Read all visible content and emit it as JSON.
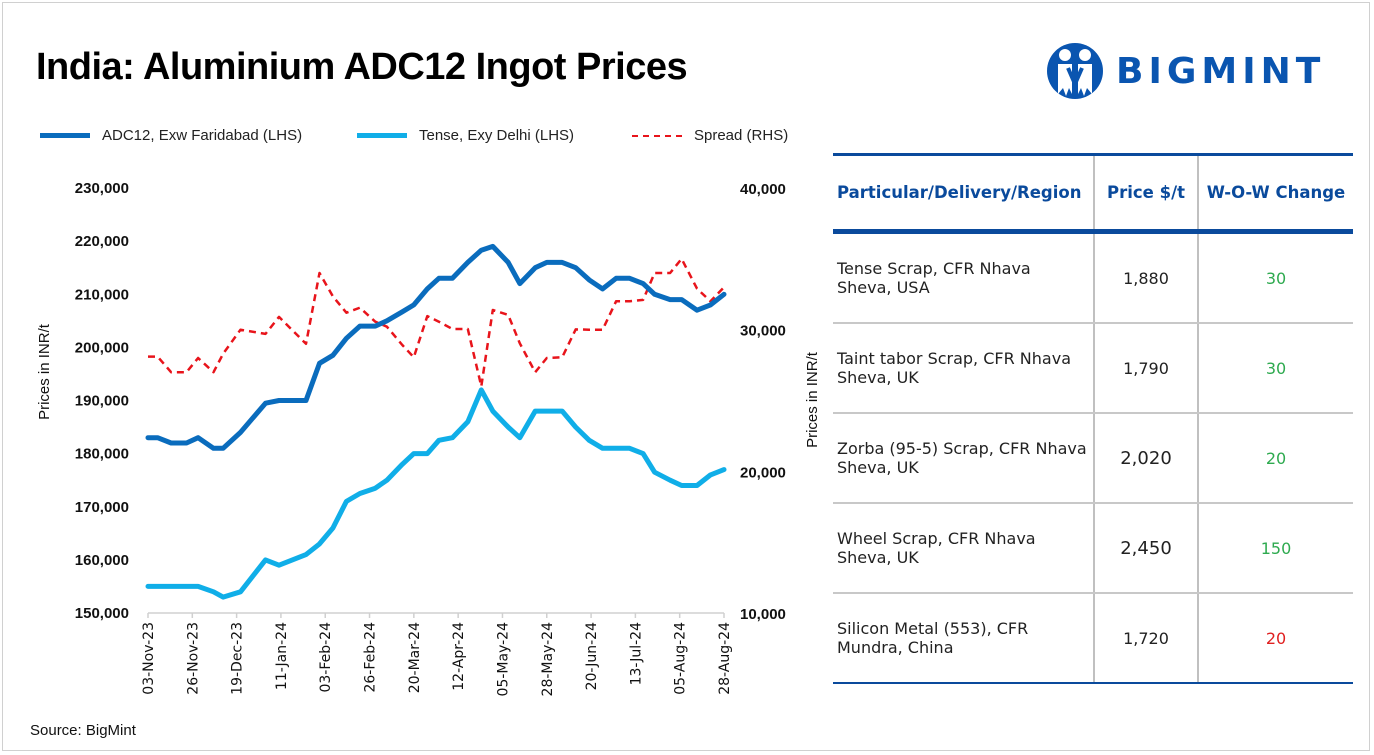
{
  "title": "India: Aluminium ADC12 Ingot Prices",
  "logo": {
    "text": "BIGMINT",
    "color": "#0a55b0"
  },
  "source": "Source: BigMint",
  "chart_data": {
    "type": "line",
    "title": "India: Aluminium ADC12 Ingot Prices",
    "ylabel": "Prices in INR/t",
    "y2label": "Prices in INR/t",
    "ylim": [
      150000,
      230000
    ],
    "y2lim": [
      10000,
      40000
    ],
    "yticks": [
      "150,000",
      "160,000",
      "170,000",
      "180,000",
      "190,000",
      "200,000",
      "210,000",
      "220,000",
      "230,000"
    ],
    "y2ticks": [
      "10,000",
      "20,000",
      "30,000",
      "40,000"
    ],
    "xticks": [
      "03-Nov-23",
      "26-Nov-23",
      "19-Dec-23",
      "11-Jan-24",
      "03-Feb-24",
      "26-Feb-24",
      "20-Mar-24",
      "12-Apr-24",
      "05-May-24",
      "28-May-24",
      "20-Jun-24",
      "13-Jul-24",
      "05-Aug-24",
      "28-Aug-24"
    ],
    "xtick_dates": [
      "2023-11-03",
      "2023-11-26",
      "2023-12-19",
      "2024-01-11",
      "2024-02-03",
      "2024-02-26",
      "2024-03-20",
      "2024-04-12",
      "2024-05-05",
      "2024-05-28",
      "2024-06-20",
      "2024-07-13",
      "2024-08-05",
      "2024-08-28"
    ],
    "legend_position": "top",
    "grid": false,
    "x": [
      "2023-11-03",
      "2023-11-08",
      "2023-11-15",
      "2023-11-23",
      "2023-11-29",
      "2023-12-07",
      "2023-12-12",
      "2023-12-21",
      "2024-01-03",
      "2024-01-10",
      "2024-01-24",
      "2024-01-31",
      "2024-02-07",
      "2024-02-14",
      "2024-02-21",
      "2024-02-29",
      "2024-03-06",
      "2024-03-14",
      "2024-03-20",
      "2024-03-27",
      "2024-04-02",
      "2024-04-09",
      "2024-04-17",
      "2024-04-24",
      "2024-04-30",
      "2024-05-08",
      "2024-05-14",
      "2024-05-22",
      "2024-05-28",
      "2024-06-05",
      "2024-06-12",
      "2024-06-19",
      "2024-06-26",
      "2024-07-03",
      "2024-07-10",
      "2024-07-17",
      "2024-07-23",
      "2024-07-31",
      "2024-08-06",
      "2024-08-14",
      "2024-08-21",
      "2024-08-28"
    ],
    "series": [
      {
        "name": "ADC12, Exw Faridabad (LHS)",
        "axis": "left",
        "color": "#0a6cbd",
        "style": "solid",
        "values": [
          183000,
          183000,
          182000,
          182000,
          183000,
          181000,
          181000,
          184000,
          189500,
          190000,
          190000,
          197000,
          198500,
          201700,
          204000,
          204000,
          205000,
          206700,
          208000,
          211000,
          213000,
          213000,
          216000,
          218300,
          219000,
          216000,
          212000,
          215000,
          216000,
          216000,
          215000,
          212700,
          211000,
          213000,
          213000,
          212000,
          210000,
          209000,
          209000,
          207000,
          208000,
          210000
        ]
      },
      {
        "name": "Tense, Exy Delhi (LHS)",
        "axis": "left",
        "color": "#10aee8",
        "style": "solid",
        "values": [
          155000,
          155000,
          155000,
          155000,
          155000,
          154000,
          153000,
          154000,
          160000,
          159000,
          161000,
          163000,
          166000,
          171000,
          172500,
          173500,
          175000,
          178000,
          180000,
          180000,
          182500,
          183000,
          186000,
          192000,
          188000,
          185000,
          183000,
          188000,
          188000,
          188000,
          185000,
          182500,
          181000,
          181000,
          181000,
          180000,
          176500,
          175000,
          174000,
          174000,
          176000,
          177000
        ]
      },
      {
        "name": "Spread (RHS)",
        "axis": "right",
        "color": "#e8141b",
        "style": "dashed",
        "values": [
          28100,
          28100,
          27000,
          27000,
          28000,
          27000,
          28300,
          30000,
          29700,
          30900,
          29000,
          34000,
          32350,
          31200,
          31550,
          30560,
          30210,
          28920,
          28050,
          30960,
          30560,
          30050,
          30050,
          26000,
          31390,
          31040,
          29040,
          27000,
          28000,
          28050,
          30020,
          30000,
          30000,
          32000,
          32000,
          32100,
          34000,
          34000,
          35000,
          32900,
          32000,
          33000
        ]
      }
    ]
  },
  "table": {
    "headers": [
      "Particular/Delivery/Region",
      "Price $/t",
      "W-O-W Change"
    ],
    "rows": [
      {
        "item": " Tense Scrap, CFR Nhava Sheva, USA",
        "price": "1,880",
        "change": "30",
        "change_color": "#2eaa4f"
      },
      {
        "item": "Taint tabor Scrap, CFR Nhava Sheva, UK",
        "price": "1,790",
        "change": "30",
        "change_color": "#2eaa4f"
      },
      {
        "item": "Zorba (95-5) Scrap, CFR Nhava Sheva, UK",
        "price": "2,020",
        "change": "20",
        "change_color": "#2eaa4f"
      },
      {
        "item": "Wheel Scrap, CFR Nhava Sheva, UK",
        "price": "2,450",
        "change": "150",
        "change_color": "#2eaa4f"
      },
      {
        "item": "Silicon Metal (553), CFR Mundra, China",
        "price": "1,720",
        "change": "20",
        "change_color": "#e02020"
      }
    ]
  }
}
